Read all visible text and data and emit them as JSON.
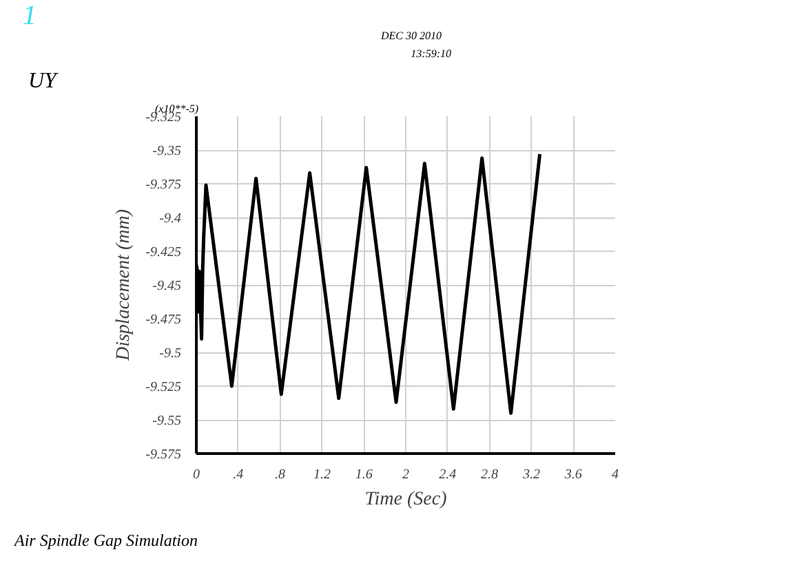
{
  "chart_data": {
    "type": "line",
    "title": "UY",
    "xlabel": "Time (Sec)",
    "ylabel": "Displacement (mm)",
    "annotations": [
      "1",
      "DEC 30 2010",
      "13:59:10",
      "(x10**-5)",
      "Air Spindle Gap Simulation"
    ],
    "series": [
      {
        "color": "#000000",
        "x": [
          0,
          0.01,
          0.02,
          0.03,
          0.05,
          0.06,
          0.07,
          0.092,
          0.338,
          0.57,
          0.811,
          1.083,
          1.36,
          1.623,
          1.908,
          2.18,
          2.456,
          2.728,
          3.004,
          3.28
        ],
        "values": [
          -9.435,
          -9.44,
          -9.47,
          -9.44,
          -9.49,
          -9.44,
          -9.415,
          -9.376,
          -9.525,
          -9.371,
          -9.531,
          -9.367,
          -9.534,
          -9.363,
          -9.537,
          -9.36,
          -9.542,
          -9.356,
          -9.545,
          -9.353
        ]
      }
    ],
    "xlim": [
      0,
      4
    ],
    "ylim": [
      -9.575,
      -9.325
    ],
    "xticks": [
      0,
      {
        "value": 0.4,
        "label": ".4"
      },
      {
        "value": 0.8,
        "label": ".8"
      },
      1.2,
      1.6,
      2,
      2.4,
      2.8,
      3.2,
      3.6,
      4
    ],
    "yticks": [
      -9.575,
      -9.55,
      -9.525,
      -9.5,
      -9.475,
      -9.45,
      -9.425,
      -9.4,
      -9.375,
      -9.35,
      -9.325
    ],
    "grid": true,
    "marker": "none",
    "line_style": "solid"
  }
}
